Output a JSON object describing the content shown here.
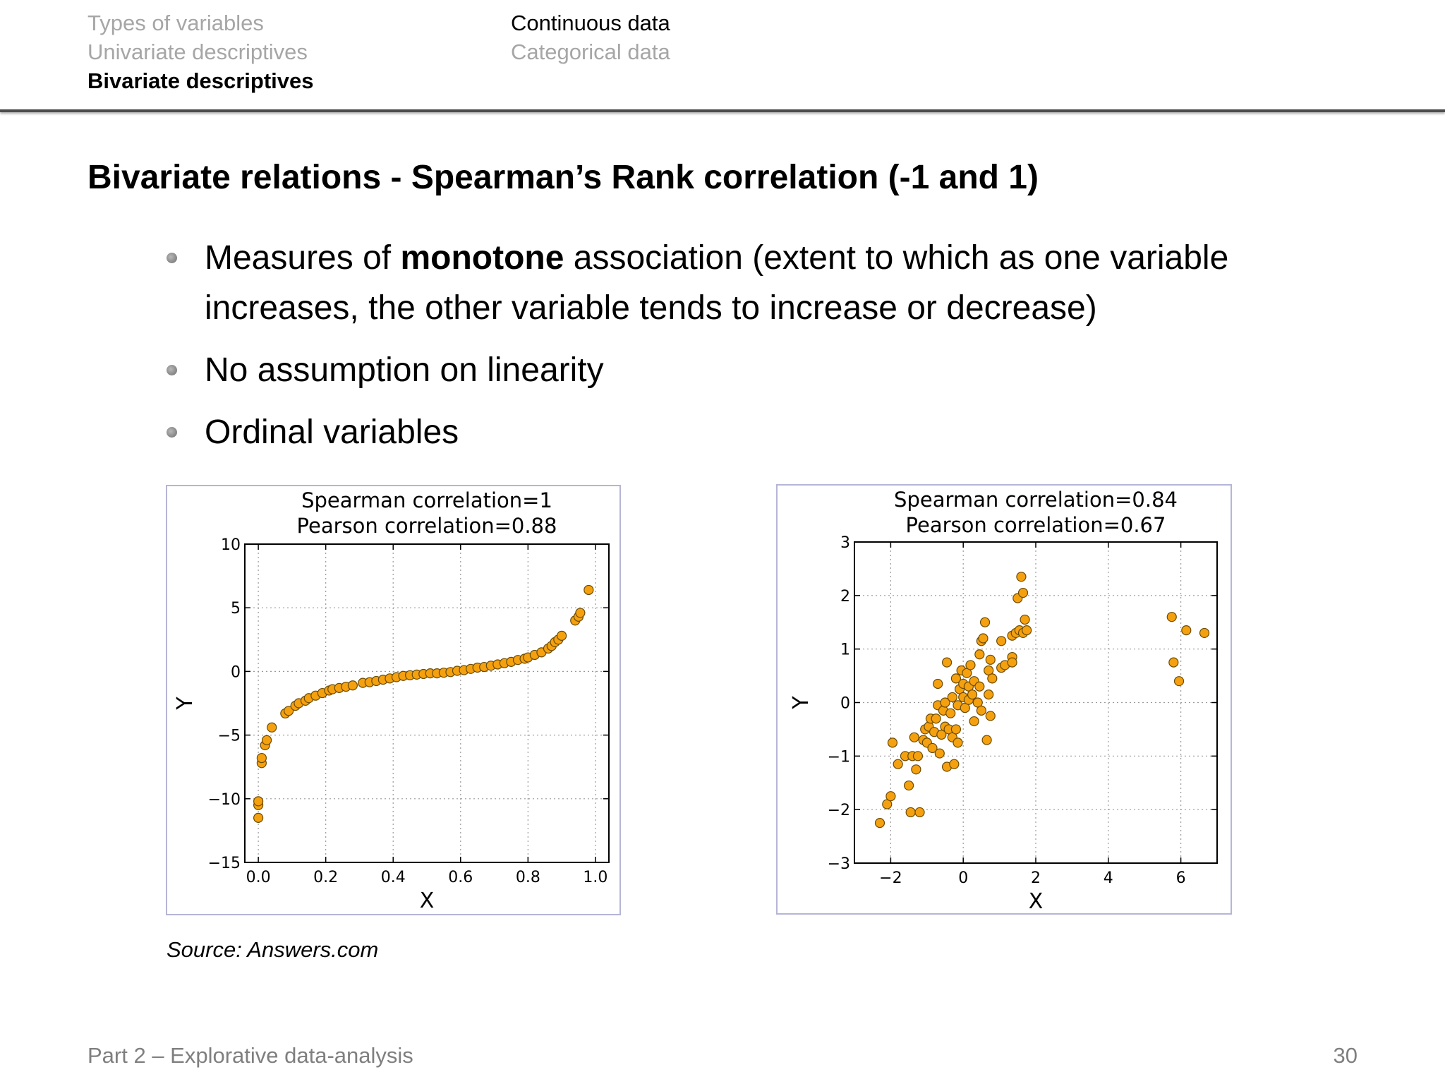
{
  "nav": {
    "left": [
      "Types of variables",
      "Univariate descriptives",
      "Bivariate descriptives"
    ],
    "right": [
      "Continuous data",
      "Categorical data"
    ]
  },
  "title": "Bivariate relations - Spearman’s Rank correlation (-1 and 1)",
  "bullets": {
    "b1_pre": "Measures of ",
    "b1_bold": "monotone",
    "b1_post": " association (extent to which as one variable increases, the other variable tends to increase or decrease)",
    "b2": "No assumption on linearity",
    "b3": "Ordinal variables"
  },
  "source": "Source: Answers.com",
  "footer": {
    "left": "Part 2 – Explorative data-analysis",
    "page": "30"
  },
  "colors": {
    "point_fill": "#f5a10f",
    "point_stroke": "#6b4a00",
    "frame_border": "#b5b5d6"
  },
  "chart_data": [
    {
      "type": "scatter",
      "title": "Spearman correlation=1",
      "subtitle": "Pearson correlation=0.88",
      "xlabel": "X",
      "ylabel": "Y",
      "xlim": [
        -0.04,
        1.04
      ],
      "ylim": [
        -15,
        10
      ],
      "xticks": [
        "0.0",
        "0.2",
        "0.4",
        "0.6",
        "0.8",
        "1.0"
      ],
      "xtick_values": [
        0.0,
        0.2,
        0.4,
        0.6,
        0.8,
        1.0
      ],
      "yticks": [
        "10",
        "5",
        "0",
        "−5",
        "−10",
        "−15"
      ],
      "ytick_values": [
        10,
        5,
        0,
        -5,
        -10,
        -15
      ],
      "grid": true,
      "points": [
        [
          0.0,
          -11.5
        ],
        [
          0.0,
          -10.5
        ],
        [
          0.0,
          -10.2
        ],
        [
          0.01,
          -7.2
        ],
        [
          0.01,
          -6.8
        ],
        [
          0.02,
          -5.8
        ],
        [
          0.025,
          -5.4
        ],
        [
          0.04,
          -4.4
        ],
        [
          0.08,
          -3.3
        ],
        [
          0.09,
          -3.1
        ],
        [
          0.11,
          -2.7
        ],
        [
          0.12,
          -2.5
        ],
        [
          0.14,
          -2.3
        ],
        [
          0.15,
          -2.1
        ],
        [
          0.17,
          -1.9
        ],
        [
          0.19,
          -1.7
        ],
        [
          0.21,
          -1.5
        ],
        [
          0.22,
          -1.4
        ],
        [
          0.24,
          -1.3
        ],
        [
          0.26,
          -1.2
        ],
        [
          0.28,
          -1.1
        ],
        [
          0.31,
          -0.9
        ],
        [
          0.33,
          -0.85
        ],
        [
          0.35,
          -0.75
        ],
        [
          0.37,
          -0.65
        ],
        [
          0.39,
          -0.55
        ],
        [
          0.41,
          -0.45
        ],
        [
          0.43,
          -0.35
        ],
        [
          0.45,
          -0.3
        ],
        [
          0.47,
          -0.25
        ],
        [
          0.49,
          -0.2
        ],
        [
          0.51,
          -0.15
        ],
        [
          0.53,
          -0.15
        ],
        [
          0.55,
          -0.1
        ],
        [
          0.57,
          -0.05
        ],
        [
          0.59,
          0.05
        ],
        [
          0.61,
          0.1
        ],
        [
          0.63,
          0.2
        ],
        [
          0.65,
          0.3
        ],
        [
          0.67,
          0.35
        ],
        [
          0.69,
          0.45
        ],
        [
          0.71,
          0.55
        ],
        [
          0.73,
          0.65
        ],
        [
          0.75,
          0.75
        ],
        [
          0.77,
          0.9
        ],
        [
          0.79,
          1.0
        ],
        [
          0.8,
          1.1
        ],
        [
          0.82,
          1.3
        ],
        [
          0.84,
          1.5
        ],
        [
          0.86,
          1.8
        ],
        [
          0.87,
          2.0
        ],
        [
          0.88,
          2.3
        ],
        [
          0.89,
          2.5
        ],
        [
          0.9,
          2.8
        ],
        [
          0.94,
          4.0
        ],
        [
          0.95,
          4.3
        ],
        [
          0.955,
          4.6
        ],
        [
          0.98,
          6.4
        ]
      ]
    },
    {
      "type": "scatter",
      "title": "Spearman correlation=0.84",
      "subtitle": "Pearson correlation=0.67",
      "xlabel": "X",
      "ylabel": "Y",
      "xlim": [
        -3,
        7
      ],
      "ylim": [
        -3,
        3
      ],
      "xticks": [
        "−2",
        "0",
        "2",
        "4",
        "6"
      ],
      "xtick_values": [
        -2,
        0,
        2,
        4,
        6
      ],
      "yticks": [
        "3",
        "2",
        "1",
        "0",
        "−1",
        "−2",
        "−3"
      ],
      "ytick_values": [
        3,
        2,
        1,
        0,
        -1,
        -2,
        -3
      ],
      "grid": true,
      "points": [
        [
          -2.3,
          -2.25
        ],
        [
          -2.1,
          -1.9
        ],
        [
          -2.0,
          -1.75
        ],
        [
          -1.95,
          -0.75
        ],
        [
          -1.8,
          -1.15
        ],
        [
          -1.6,
          -1.0
        ],
        [
          -1.5,
          -1.55
        ],
        [
          -1.45,
          -2.05
        ],
        [
          -1.4,
          -1.0
        ],
        [
          -1.35,
          -0.65
        ],
        [
          -1.3,
          -1.25
        ],
        [
          -1.25,
          -1.0
        ],
        [
          -1.2,
          -2.05
        ],
        [
          -1.1,
          -0.7
        ],
        [
          -1.05,
          -0.5
        ],
        [
          -1.0,
          -0.75
        ],
        [
          -0.95,
          -0.45
        ],
        [
          -0.9,
          -0.3
        ],
        [
          -0.85,
          -0.85
        ],
        [
          -0.8,
          -0.55
        ],
        [
          -0.75,
          -0.3
        ],
        [
          -0.7,
          -0.05
        ],
        [
          -0.7,
          0.35
        ],
        [
          -0.65,
          -0.95
        ],
        [
          -0.6,
          -0.6
        ],
        [
          -0.55,
          -0.15
        ],
        [
          -0.5,
          -0.45
        ],
        [
          -0.5,
          0.0
        ],
        [
          -0.45,
          -1.2
        ],
        [
          -0.45,
          0.75
        ],
        [
          -0.4,
          -0.5
        ],
        [
          -0.35,
          -0.2
        ],
        [
          -0.3,
          -0.65
        ],
        [
          -0.3,
          0.1
        ],
        [
          -0.25,
          -1.15
        ],
        [
          -0.2,
          -0.5
        ],
        [
          -0.2,
          0.45
        ],
        [
          -0.15,
          -0.05
        ],
        [
          -0.15,
          -0.75
        ],
        [
          -0.1,
          0.25
        ],
        [
          -0.05,
          0.6
        ],
        [
          0.0,
          0.1
        ],
        [
          0.0,
          0.35
        ],
        [
          0.05,
          -0.1
        ],
        [
          0.1,
          0.55
        ],
        [
          0.15,
          0.05
        ],
        [
          0.15,
          0.3
        ],
        [
          0.2,
          0.7
        ],
        [
          0.25,
          0.15
        ],
        [
          0.3,
          0.4
        ],
        [
          0.3,
          -0.35
        ],
        [
          0.4,
          0.0
        ],
        [
          0.45,
          0.9
        ],
        [
          0.45,
          0.3
        ],
        [
          0.5,
          -0.15
        ],
        [
          0.5,
          1.15
        ],
        [
          0.55,
          1.2
        ],
        [
          0.6,
          1.5
        ],
        [
          0.65,
          -0.7
        ],
        [
          0.7,
          0.6
        ],
        [
          0.7,
          0.15
        ],
        [
          0.75,
          0.8
        ],
        [
          0.75,
          -0.25
        ],
        [
          0.8,
          0.45
        ],
        [
          1.05,
          0.65
        ],
        [
          1.05,
          1.15
        ],
        [
          1.15,
          0.7
        ],
        [
          1.35,
          1.25
        ],
        [
          1.35,
          0.85
        ],
        [
          1.35,
          0.75
        ],
        [
          1.45,
          1.3
        ],
        [
          1.5,
          1.95
        ],
        [
          1.55,
          1.35
        ],
        [
          1.6,
          2.35
        ],
        [
          1.65,
          2.05
        ],
        [
          1.65,
          1.3
        ],
        [
          1.7,
          1.55
        ],
        [
          1.75,
          1.35
        ],
        [
          5.75,
          1.6
        ],
        [
          5.8,
          0.75
        ],
        [
          5.95,
          0.4
        ],
        [
          6.15,
          1.35
        ],
        [
          6.65,
          1.3
        ]
      ]
    }
  ]
}
